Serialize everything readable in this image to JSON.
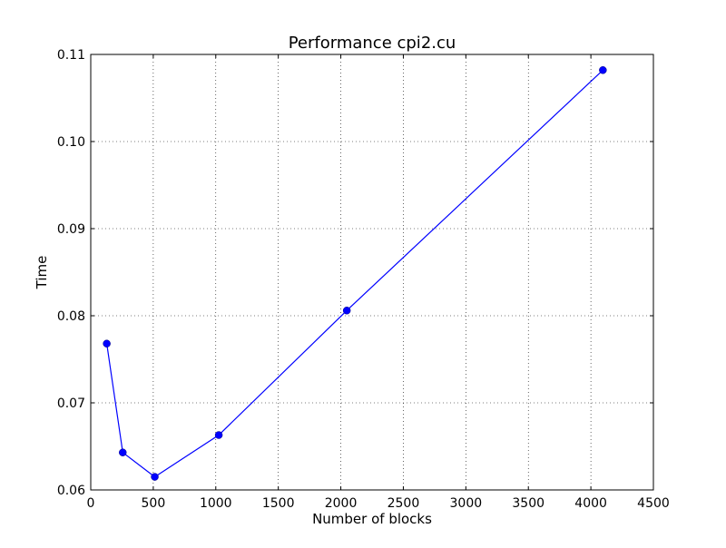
{
  "chart_data": {
    "type": "line",
    "title": "Performance cpi2.cu",
    "xlabel": "Number of blocks",
    "ylabel": "Time",
    "xlim": [
      0,
      4500
    ],
    "ylim": [
      0.06,
      0.11
    ],
    "grid": true,
    "x_ticks": [
      0,
      500,
      1000,
      1500,
      2000,
      2500,
      3000,
      3500,
      4000,
      4500
    ],
    "x_tick_labels": [
      "0",
      "500",
      "1000",
      "1500",
      "2000",
      "2500",
      "3000",
      "3500",
      "4000",
      "4500"
    ],
    "y_ticks": [
      0.06,
      0.07,
      0.08,
      0.09,
      0.1,
      0.11
    ],
    "y_tick_labels": [
      "0.06",
      "0.07",
      "0.08",
      "0.09",
      "0.10",
      "0.11"
    ],
    "series": [
      {
        "color": "#0000ff",
        "x": [
          128,
          256,
          512,
          1024,
          2048,
          4096
        ],
        "y": [
          0.0768,
          0.0643,
          0.0615,
          0.0663,
          0.0806,
          0.1082
        ]
      }
    ]
  }
}
